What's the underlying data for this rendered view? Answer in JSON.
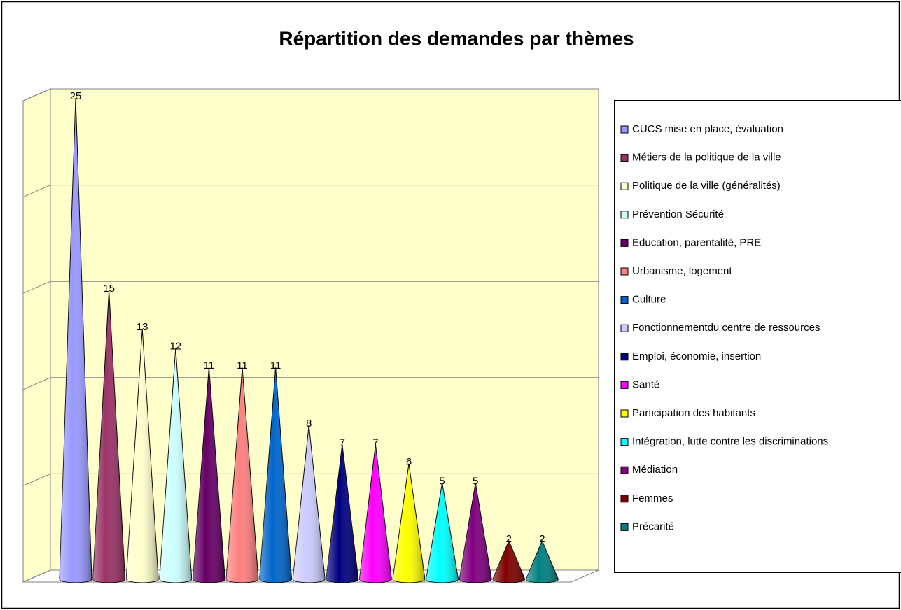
{
  "chart_data": {
    "type": "cone",
    "title": "Répartition des demandes par thèmes",
    "categories": [
      "CUCS mise en place, évaluation",
      "Métiers de la politique de la ville",
      "Politique de la ville (généralités)",
      "Prévention Sécurité",
      "Education, parentalité, PRE",
      "Urbanisme, logement",
      "Culture",
      "Fonctionnementdu centre de ressources",
      "Emploi, économie, insertion",
      "Santé",
      "Participation des habitants",
      "Intégration, lutte contre les discriminations",
      "Médiation",
      "Femmes",
      "Précarité"
    ],
    "values": [
      25,
      15,
      13,
      12,
      11,
      11,
      11,
      8,
      7,
      7,
      6,
      5,
      5,
      2,
      2
    ],
    "colors": [
      "#9999ff",
      "#993366",
      "#ffffcc",
      "#ccffff",
      "#660066",
      "#ff8080",
      "#0066cc",
      "#ccccff",
      "#000080",
      "#ff00ff",
      "#ffff00",
      "#00ffff",
      "#800080",
      "#800000",
      "#008080"
    ],
    "ylim": [
      0,
      25
    ],
    "yticks": [
      0,
      5,
      10,
      15,
      20,
      25
    ],
    "grid": true,
    "legend": "right"
  }
}
